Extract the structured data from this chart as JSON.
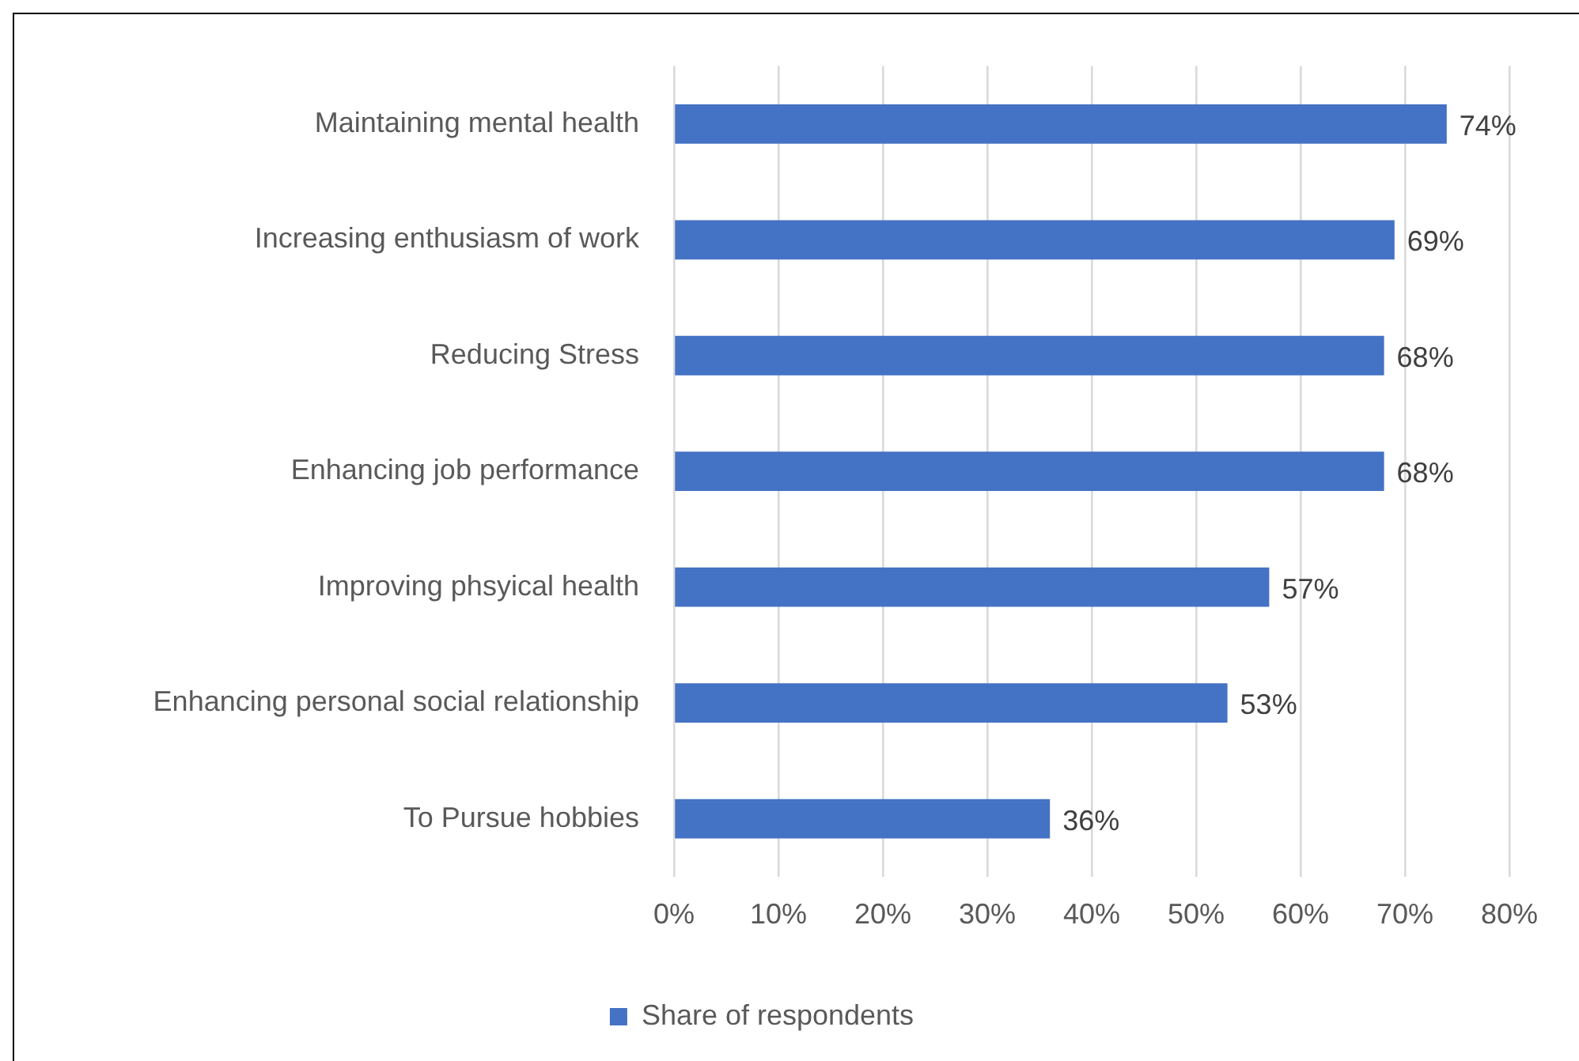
{
  "chart_data": {
    "type": "bar",
    "orientation": "horizontal",
    "categories": [
      "Maintaining mental health",
      "Increasing enthusiasm of work",
      "Reducing Stress",
      "Enhancing job performance",
      "Improving phsyical health",
      "Enhancing personal social relationship",
      "To Pursue hobbies"
    ],
    "series": [
      {
        "name": "Share of respondents",
        "color": "#4472c4",
        "values": [
          74,
          69,
          68,
          68,
          57,
          53,
          36
        ],
        "value_labels": [
          "74%",
          "69%",
          "68%",
          "68%",
          "57%",
          "53%",
          "36%"
        ]
      }
    ],
    "xlim": [
      0,
      80
    ],
    "xticks": [
      {
        "value": 0,
        "label": "0%"
      },
      {
        "value": 10,
        "label": "10%"
      },
      {
        "value": 20,
        "label": "20%"
      },
      {
        "value": 30,
        "label": "30%"
      },
      {
        "value": 40,
        "label": "40%"
      },
      {
        "value": 50,
        "label": "50%"
      },
      {
        "value": 60,
        "label": "60%"
      },
      {
        "value": 70,
        "label": "70%"
      },
      {
        "value": 80,
        "label": "80%"
      }
    ],
    "grid": "x",
    "legend": "bottom"
  }
}
